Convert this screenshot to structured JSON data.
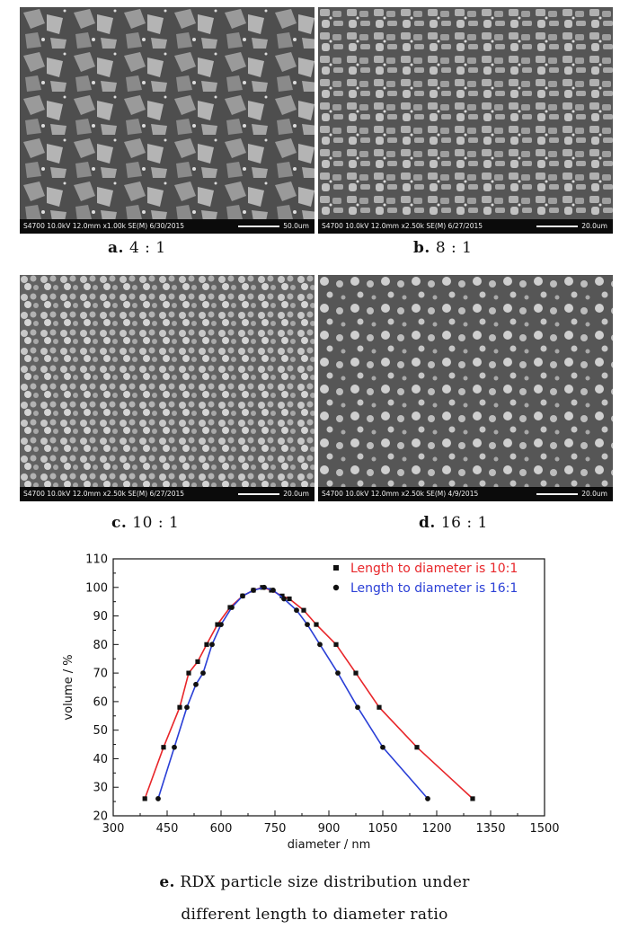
{
  "panels": [
    {
      "letter": "a.",
      "ratio": "4 : 1",
      "info": "S4700 10.0kV 12.0mm x1.00k SE(M) 6/30/2015",
      "scale": "50.0um"
    },
    {
      "letter": "b.",
      "ratio": "8 : 1",
      "info": "S4700 10.0kV 12.0mm x2.50k SE(M) 6/27/2015",
      "scale": "20.0um"
    },
    {
      "letter": "c.",
      "ratio": "10 : 1",
      "info": "S4700 10.0kV 12.0mm x2.50k SE(M) 6/27/2015",
      "scale": "20.0um"
    },
    {
      "letter": "d.",
      "ratio": "16 : 1",
      "info": "S4700 10.0kV 12.0mm x2.50k SE(M) 4/9/2015",
      "scale": "20.0um"
    }
  ],
  "caption_e": {
    "letter": "e.",
    "line1": "RDX particle size distribution under",
    "line2": "different length to diameter ratio"
  },
  "chart_data": {
    "type": "line",
    "xlabel": "diameter / nm",
    "ylabel": "volume / %",
    "xlim": [
      300,
      1500
    ],
    "ylim": [
      20,
      110
    ],
    "xticks": [
      300,
      450,
      600,
      750,
      900,
      1050,
      1200,
      1350,
      1500
    ],
    "yticks": [
      20,
      30,
      40,
      50,
      60,
      70,
      80,
      90,
      100,
      110
    ],
    "legend_position": "top-right",
    "series": [
      {
        "name": "Length to diameter is 10:1",
        "marker": "square",
        "color": "#e8262a",
        "x": [
          388,
          440,
          485,
          510,
          535,
          560,
          590,
          625,
          660,
          690,
          715,
          740,
          770,
          790,
          830,
          865,
          920,
          975,
          1040,
          1145,
          1300
        ],
        "y": [
          26,
          44,
          58,
          70,
          74,
          80,
          87,
          93,
          97,
          99,
          100,
          99,
          97,
          96,
          92,
          87,
          80,
          70,
          58,
          44,
          26
        ]
      },
      {
        "name": "Length to diameter is 16:1",
        "marker": "circle",
        "color": "#2a3fd6",
        "x": [
          425,
          470,
          505,
          530,
          550,
          575,
          600,
          630,
          660,
          690,
          720,
          745,
          775,
          810,
          840,
          875,
          925,
          980,
          1050,
          1175
        ],
        "y": [
          26,
          44,
          58,
          66,
          70,
          80,
          87,
          93,
          97,
          99,
          100,
          99,
          96,
          92,
          87,
          80,
          70,
          58,
          44,
          26
        ]
      }
    ]
  }
}
